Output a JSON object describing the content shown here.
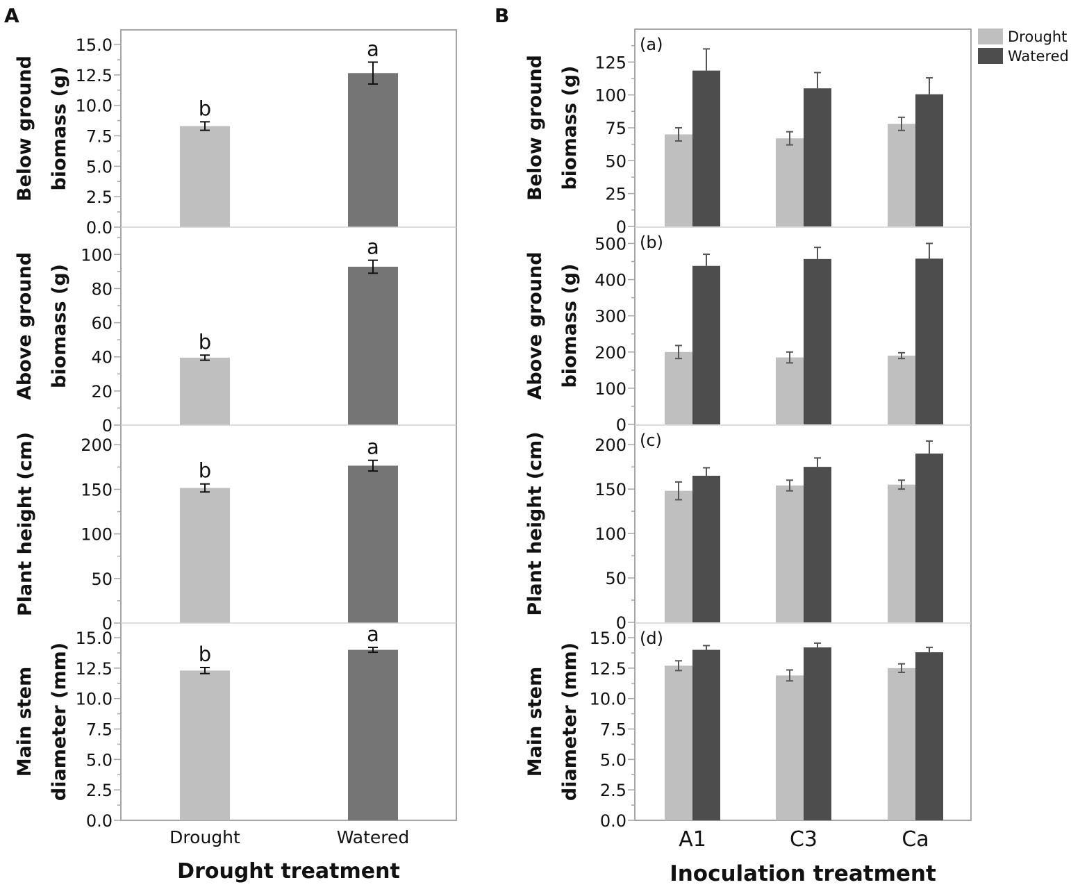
{
  "figure": {
    "panel_labels": [
      "A",
      "B"
    ]
  },
  "colors": {
    "drought": "#bfbfbf",
    "watered_A": "#757575",
    "watered_B": "#4d4d4d",
    "axis": "#a6a6a6",
    "text": "#111111",
    "errorbar_A": "#111111",
    "errorbar_B": "#555555"
  },
  "chart_data": [
    {
      "panel": "A",
      "type": "bar",
      "xlabel": "Drought treatment",
      "categories": [
        "Drought",
        "Watered"
      ],
      "subplots": [
        {
          "ylabel": [
            "Below ground",
            "biomass (g)"
          ],
          "ticks": [
            "0.0",
            "2.5",
            "5.0",
            "7.5",
            "10.0",
            "12.5",
            "15.0"
          ],
          "ylim": [
            0,
            16.2
          ],
          "values": [
            8.3,
            12.65
          ],
          "errors": [
            0.35,
            0.9
          ],
          "letters": [
            "b",
            "a"
          ]
        },
        {
          "ylabel": [
            "Above ground",
            "biomass (g)"
          ],
          "ticks": [
            "0",
            "20",
            "40",
            "60",
            "80",
            "100"
          ],
          "ylim": [
            0,
            116
          ],
          "values": [
            39.5,
            92.8
          ],
          "errors": [
            1.5,
            3.8
          ],
          "letters": [
            "b",
            "a"
          ]
        },
        {
          "ylabel": [
            "Plant height (cm)"
          ],
          "ticks": [
            "0",
            "50",
            "100",
            "150",
            "200"
          ],
          "ylim": [
            0,
            222
          ],
          "values": [
            151.5,
            176.5
          ],
          "errors": [
            4.5,
            6.0
          ],
          "letters": [
            "b",
            "a"
          ]
        },
        {
          "ylabel": [
            "Main stem",
            "diameter (mm)"
          ],
          "ticks": [
            "0.0",
            "2.5",
            "5.0",
            "7.5",
            "10.0",
            "12.5",
            "15.0"
          ],
          "ylim": [
            0,
            16.2
          ],
          "values": [
            12.3,
            14.0
          ],
          "errors": [
            0.25,
            0.2
          ],
          "letters": [
            "b",
            "a"
          ]
        }
      ]
    },
    {
      "panel": "B",
      "type": "bar",
      "xlabel": "Inoculation treatment",
      "categories": [
        "A1",
        "C3",
        "Ca"
      ],
      "legend": {
        "position": "top-right",
        "entries": [
          "Drought",
          "Watered"
        ]
      },
      "series": [
        {
          "name": "Drought"
        },
        {
          "name": "Watered"
        }
      ],
      "subplots": [
        {
          "tag": "(a)",
          "ylabel": [
            "Below ground",
            "biomass (g)"
          ],
          "ticks": [
            "0",
            "25",
            "50",
            "75",
            "100",
            "125"
          ],
          "ylim": [
            0,
            150
          ],
          "drought": [
            70,
            67,
            78
          ],
          "watered": [
            118.5,
            105,
            100.5
          ],
          "drought_err": [
            5,
            5,
            5
          ],
          "watered_err": [
            16.5,
            12,
            12.5
          ]
        },
        {
          "tag": "(b)",
          "ylabel": [
            "Above ground",
            "biomass (g)"
          ],
          "ticks": [
            "0",
            "100",
            "200",
            "300",
            "400",
            "500"
          ],
          "ylim": [
            0,
            545
          ],
          "drought": [
            200,
            185,
            190
          ],
          "watered": [
            438,
            457,
            458
          ],
          "drought_err": [
            18,
            15,
            8
          ],
          "watered_err": [
            32,
            32,
            42
          ]
        },
        {
          "tag": "(c)",
          "ylabel": [
            "Plant height (cm)"
          ],
          "ticks": [
            "0",
            "50",
            "100",
            "150",
            "200"
          ],
          "ylim": [
            0,
            222
          ],
          "drought": [
            148,
            154,
            155
          ],
          "watered": [
            165,
            175,
            190
          ],
          "drought_err": [
            10,
            6,
            5
          ],
          "watered_err": [
            9,
            10,
            14
          ]
        },
        {
          "tag": "(d)",
          "ylabel": [
            "Main stem",
            "diameter (mm)"
          ],
          "ticks": [
            "0.0",
            "2.5",
            "5.0",
            "7.5",
            "10.0",
            "12.5",
            "15.0"
          ],
          "ylim": [
            0,
            16.2
          ],
          "drought": [
            12.7,
            11.9,
            12.5
          ],
          "watered": [
            14.0,
            14.2,
            13.8
          ],
          "drought_err": [
            0.4,
            0.45,
            0.35
          ],
          "watered_err": [
            0.35,
            0.35,
            0.4
          ]
        }
      ]
    }
  ]
}
